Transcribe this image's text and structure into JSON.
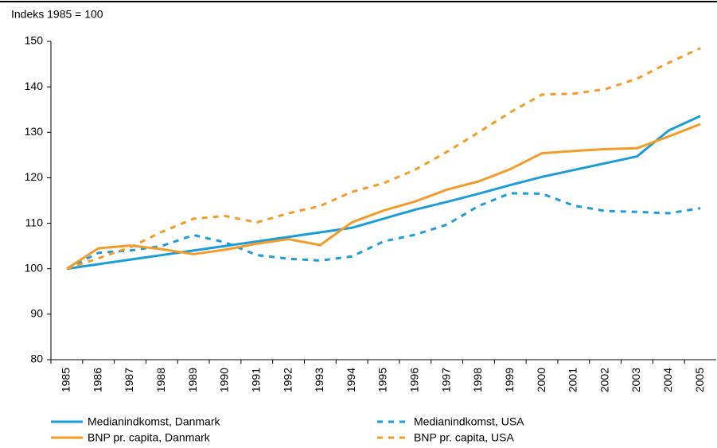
{
  "chart_data": {
    "type": "line",
    "ylabel": "Indeks 1985 = 100",
    "categories": [
      "1985",
      "1986",
      "1987",
      "1988",
      "1989",
      "1990",
      "1991",
      "1992",
      "1993",
      "1994",
      "1995",
      "1996",
      "1997",
      "1998",
      "1999",
      "2000",
      "2001",
      "2002",
      "2003",
      "2004",
      "2005"
    ],
    "ylim": [
      80,
      150
    ],
    "yticks": [
      80,
      90,
      100,
      110,
      120,
      130,
      140,
      150
    ],
    "grid": false,
    "legend": "bottom",
    "series": [
      {
        "name": "Medianindkomst, Danmark",
        "color": "#1b9dd9",
        "dashed": false,
        "values": [
          100,
          101,
          102,
          103,
          104,
          105,
          106,
          107,
          108,
          109,
          111,
          113,
          114.7,
          116.5,
          118.4,
          120.2,
          121.7,
          123.2,
          124.7,
          130.4,
          133.6
        ]
      },
      {
        "name": "Medianindkomst, USA",
        "color": "#1b9dd9",
        "dashed": true,
        "values": [
          100,
          103.5,
          104,
          105,
          107.4,
          105.8,
          103,
          102.2,
          101.8,
          102.7,
          106,
          107.5,
          109.7,
          113.8,
          116.6,
          116.5,
          113.9,
          112.7,
          112.5,
          112.2,
          113.3
        ]
      },
      {
        "name": "BNP pr. capita, Danmark",
        "color": "#f39c28",
        "dashed": false,
        "values": [
          100,
          104.5,
          105.1,
          104.3,
          103.2,
          104.2,
          105.5,
          106.5,
          105.2,
          110.2,
          112.8,
          114.8,
          117.4,
          119.2,
          121.9,
          125.4,
          125.9,
          126.3,
          126.5,
          129.1,
          131.8
        ]
      },
      {
        "name": "BNP pr. capita, USA",
        "color": "#f39c28",
        "dashed": true,
        "values": [
          100,
          102.3,
          104.7,
          108.1,
          111,
          111.6,
          110.2,
          112.2,
          113.8,
          116.9,
          118.8,
          121.8,
          125.7,
          130,
          134.4,
          138.3,
          138.5,
          139.5,
          141.8,
          145.3,
          148.5
        ]
      }
    ]
  }
}
